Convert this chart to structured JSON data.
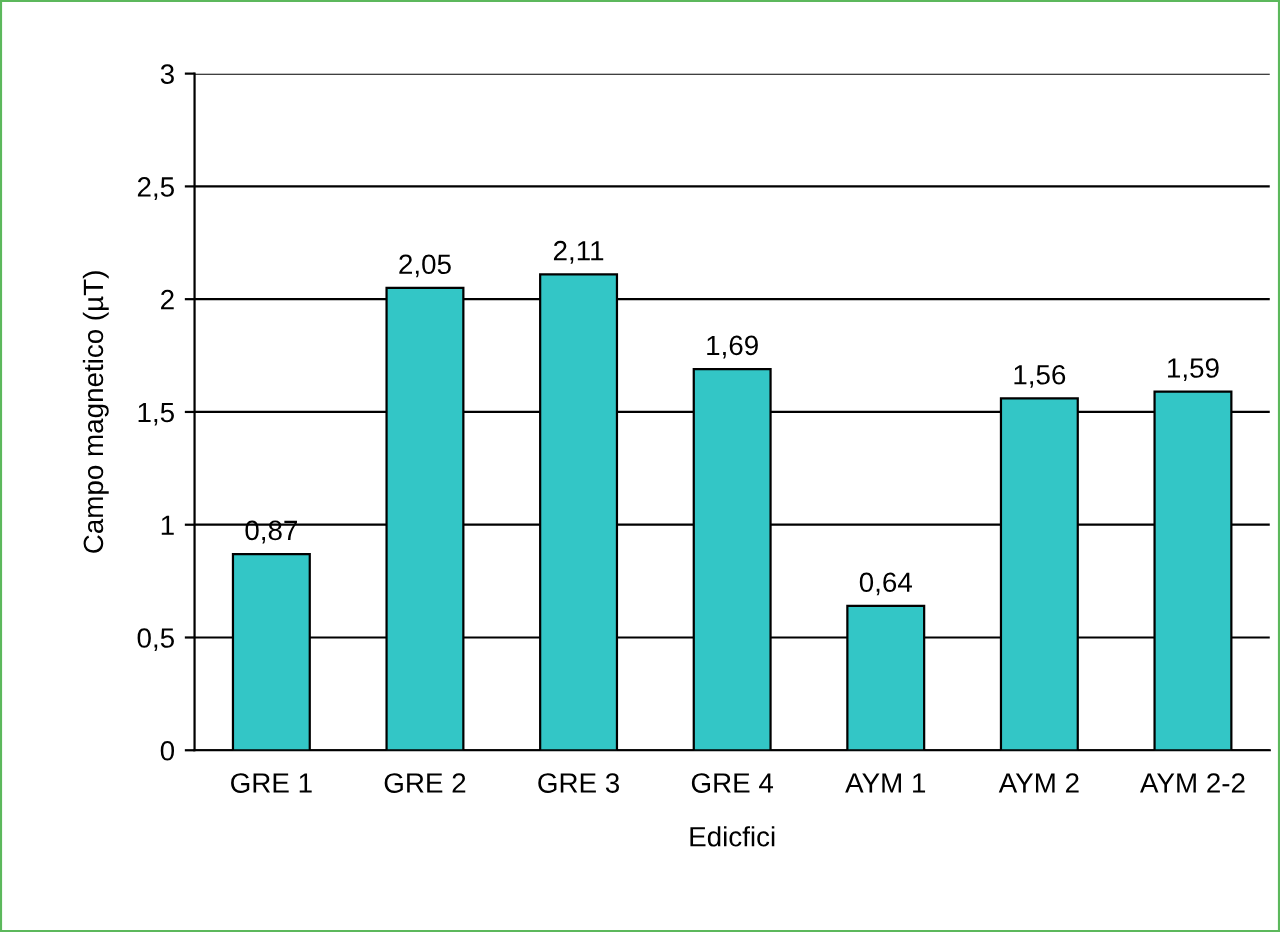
{
  "chart_data": {
    "type": "bar",
    "xlabel": "Edicfici",
    "ylabel": "Campo magnetico (µT)",
    "categories": [
      "GRE 1",
      "GRE 2",
      "GRE 3",
      "GRE 4",
      "AYM 1",
      "AYM 2",
      "AYM 2-2"
    ],
    "values": [
      0.87,
      2.05,
      2.11,
      1.69,
      0.64,
      1.56,
      1.59
    ],
    "value_labels": [
      "0,87",
      "2,05",
      "2,11",
      "1,69",
      "0,64",
      "1,56",
      "1,59"
    ],
    "color": "#33c6c6",
    "ylim": [
      0,
      3
    ],
    "yticks": [
      0,
      {
        "value": 0.5,
        "label": "0,5"
      },
      1,
      {
        "value": 1.5,
        "label": "1,5"
      },
      2,
      {
        "value": 2.5,
        "label": "2,5"
      },
      3
    ],
    "grid": "y",
    "legend": false
  }
}
